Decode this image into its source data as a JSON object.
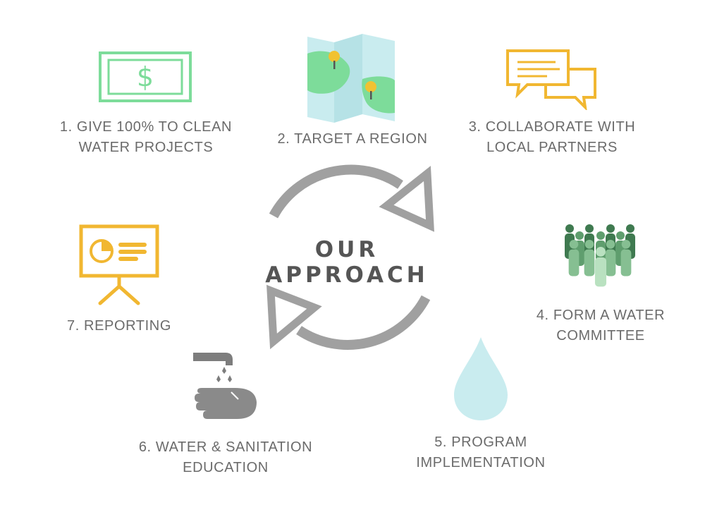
{
  "title": "OUR APPROACH",
  "colors": {
    "green": "#7ddc9a",
    "yellow": "#f1b731",
    "gray": "#8a8a8a",
    "water": "#c9ecef",
    "text": "#6b6b6b"
  },
  "steps": [
    {
      "id": 1,
      "lines": [
        "1. GIVE 100% TO CLEAN",
        "WATER PROJECTS"
      ],
      "icon": "dollar-bill-icon"
    },
    {
      "id": 2,
      "lines": [
        "2. TARGET A REGION"
      ],
      "icon": "map-icon"
    },
    {
      "id": 3,
      "lines": [
        "3. COLLABORATE WITH",
        "LOCAL PARTNERS"
      ],
      "icon": "speech-bubbles-icon"
    },
    {
      "id": 4,
      "lines": [
        "4. FORM A WATER",
        "COMMITTEE"
      ],
      "icon": "people-group-icon"
    },
    {
      "id": 5,
      "lines": [
        "5. PROGRAM",
        "IMPLEMENTATION"
      ],
      "icon": "water-drop-icon"
    },
    {
      "id": 6,
      "lines": [
        "6. WATER & SANITATION",
        "EDUCATION"
      ],
      "icon": "hand-washing-icon"
    },
    {
      "id": 7,
      "lines": [
        "7. REPORTING"
      ],
      "icon": "presentation-board-icon"
    }
  ]
}
